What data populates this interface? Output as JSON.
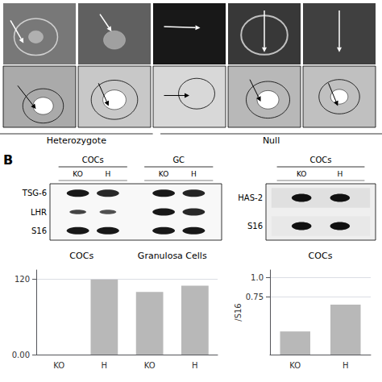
{
  "chart_data": [
    {
      "type": "image_panels",
      "annotations": [
        "Heterozygote",
        "Null"
      ]
    },
    {
      "type": "gel",
      "panel_label": "B",
      "rows": [
        "TSG-6",
        "LHR",
        "S16"
      ],
      "groups": [
        "COCs",
        "GC"
      ],
      "categories": [
        "KO",
        "H",
        "KO",
        "H"
      ]
    },
    {
      "type": "gel",
      "rows": [
        "HAS-2",
        "S16"
      ],
      "groups": [
        "COCs"
      ],
      "categories": [
        "KO",
        "H"
      ]
    },
    {
      "type": "bar",
      "categories": [
        "KO",
        "H",
        "KO",
        "H"
      ],
      "values": [
        0,
        120,
        100,
        110
      ],
      "color": "#b8b8b8",
      "ylim": [
        0,
        135
      ],
      "yticks": [
        {
          "value": 0,
          "label": "0.00"
        },
        120
      ],
      "grid": true,
      "annotations": [
        "COCs",
        "Granulosa Cells"
      ]
    },
    {
      "type": "bar",
      "categories": [
        "KO",
        "H"
      ],
      "values": [
        0.3,
        0.65
      ],
      "color": "#b8b8b8",
      "ylim": [
        0,
        1.1
      ],
      "yticks": [
        0.75,
        {
          "value": 1.0,
          "label": "1.0"
        }
      ],
      "ylabel": "/S16",
      "grid": true,
      "annotations": [
        "COCs"
      ]
    }
  ]
}
